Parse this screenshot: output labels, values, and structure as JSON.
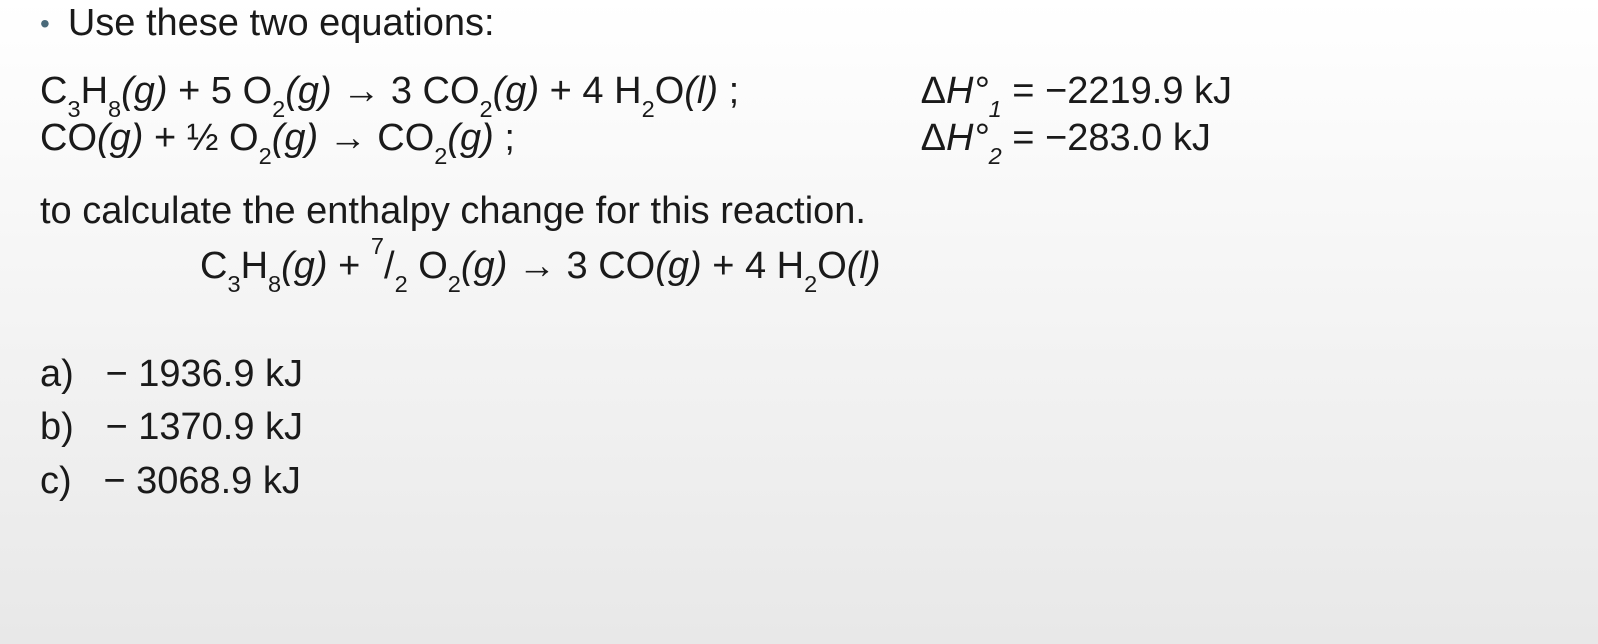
{
  "typography": {
    "font_family": "Century Gothic",
    "base_fontsize_pt": 29,
    "text_color": "#1a1a1a",
    "bullet_color": "#4a6a7a",
    "background_gradient": [
      "#ffffff",
      "#e8e8e8"
    ]
  },
  "header": {
    "bullet_glyph": "•",
    "text": "Use these two equations:"
  },
  "equations": {
    "eq1": {
      "reactants": [
        {
          "coef": "",
          "formula": "C",
          "subs": "3",
          "tail": "H",
          "subs2": "8",
          "state": "(g)"
        },
        {
          "coef": "5 ",
          "formula": "O",
          "subs": "2",
          "state": "(g)"
        }
      ],
      "products": [
        {
          "coef": "3 ",
          "formula": "CO",
          "subs": "2",
          "state": "(g)"
        },
        {
          "coef": "4 ",
          "formula": "H",
          "subs": "2",
          "tail": "O",
          "state": "(l)"
        }
      ],
      "dH_label_prefix": "Δ",
      "dH_label_H": "H",
      "dH_label_deg": "°",
      "dH_sub": "1",
      "dH_value": "= −2219.9 kJ"
    },
    "eq2": {
      "reactants": [
        {
          "coef": "",
          "formula": "CO",
          "state": "(g)"
        },
        {
          "coef": "½ ",
          "formula": "O",
          "subs": "2",
          "state": "(g)"
        }
      ],
      "products": [
        {
          "coef": "",
          "formula": "CO",
          "subs": "2",
          "state": "(g)"
        }
      ],
      "dH_label_prefix": "Δ",
      "dH_label_H": "H",
      "dH_label_deg": "°",
      "dH_sub": "2",
      "dH_value": "= −283.0 kJ"
    },
    "arrow": "→",
    "plus": " + ",
    "semicolon": ";"
  },
  "sentence": "to calculate the enthalpy change for this reaction.",
  "target": {
    "reactants": [
      {
        "coef": "",
        "formula": "C",
        "subs": "3",
        "tail": "H",
        "subs2": "8",
        "state": "(g)"
      },
      {
        "coef_sup": "7",
        "coef_slash": "/",
        "coef_sub": "2",
        "coef_sp": " ",
        "formula": "O",
        "subs": "2",
        "state": "(g)"
      }
    ],
    "products": [
      {
        "coef": "3 ",
        "formula": "CO",
        "state": "(g)"
      },
      {
        "coef": "4 ",
        "formula": "H",
        "subs": "2",
        "tail": "O",
        "state": "(l)"
      }
    ]
  },
  "options": [
    {
      "label": "a)",
      "value": "− 1936.9 kJ"
    },
    {
      "label": "b)",
      "value": "− 1370.9 kJ"
    },
    {
      "label": "c)",
      "value": "− 3068.9 kJ"
    }
  ]
}
